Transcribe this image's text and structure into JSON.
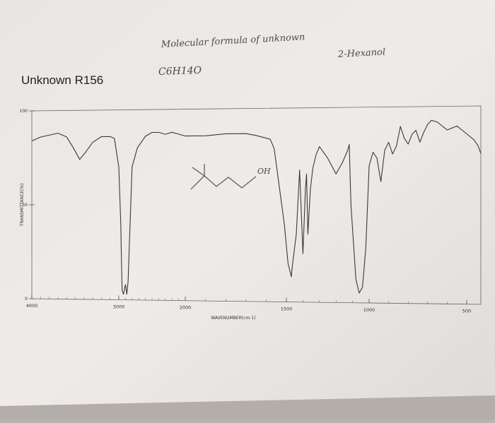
{
  "annotations": {
    "molecular_formula_label": "Molecular formula of unknown",
    "molecular_formula": "C6H14O",
    "compound_name": "2-Hexanol",
    "structure_label": "OH"
  },
  "chart_data": {
    "type": "line",
    "title": "Unknown R156",
    "xlabel": "WAVENUMBER(cm-1)",
    "ylabel": "TRANSMITTANCE(%)",
    "x_reversed": true,
    "xlim": [
      4000,
      400
    ],
    "ylim": [
      0,
      100
    ],
    "x_ticks": [
      4000,
      3000,
      2000,
      1500,
      1000,
      500
    ],
    "x_tick_labels": [
      "4000",
      "3000",
      "2000",
      "1500",
      "1000",
      "500"
    ],
    "y_ticks": [
      0,
      50,
      100
    ],
    "y_tick_labels": [
      "0",
      "50",
      "100"
    ],
    "grid": false,
    "series": [
      {
        "values_x": [
          4000,
          3900,
          3800,
          3700,
          3600,
          3520,
          3450,
          3380,
          3300,
          3200,
          3100,
          3050,
          3000,
          2970,
          2960,
          2950,
          2930,
          2900,
          2880,
          2860,
          2840,
          2800,
          2720,
          2600,
          2500,
          2400,
          2300,
          2200,
          2100,
          2000,
          1900,
          1800,
          1700,
          1650,
          1580,
          1560,
          1510,
          1490,
          1470,
          1465,
          1440,
          1420,
          1400,
          1385,
          1378,
          1370,
          1355,
          1340,
          1320,
          1300,
          1250,
          1200,
          1160,
          1130,
          1120,
          1110,
          1080,
          1060,
          1040,
          1020,
          1000,
          980,
          960,
          940,
          920,
          900,
          880,
          860,
          840,
          820,
          800,
          780,
          760,
          740,
          720,
          700,
          680,
          650,
          600,
          550,
          500,
          450,
          420,
          400
        ],
        "values_y": [
          84,
          86,
          87,
          88,
          86,
          80,
          74,
          78,
          83,
          86,
          86,
          85,
          70,
          40,
          20,
          5,
          3,
          8,
          3,
          10,
          30,
          70,
          80,
          86,
          88,
          88,
          87,
          88,
          87,
          86,
          86,
          87,
          87,
          86,
          84,
          79,
          40,
          20,
          13,
          18,
          35,
          68,
          25,
          58,
          66,
          35,
          58,
          69,
          76,
          80,
          74,
          66,
          72,
          78,
          81,
          50,
          12,
          5,
          8,
          28,
          70,
          77,
          74,
          62,
          78,
          82,
          76,
          80,
          90,
          84,
          81,
          86,
          88,
          82,
          87,
          91,
          93,
          92,
          88,
          90,
          86,
          83,
          80,
          76
        ]
      }
    ]
  }
}
